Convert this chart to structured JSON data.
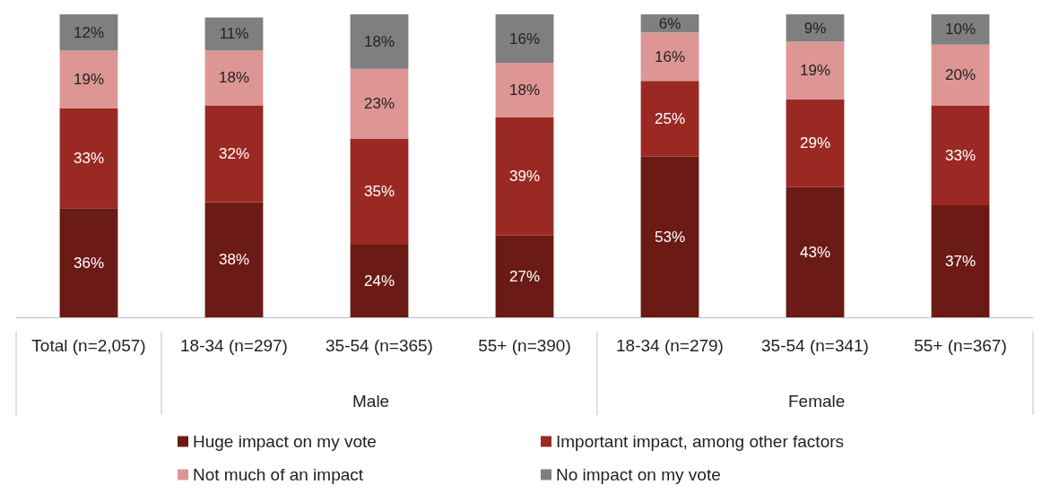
{
  "chart_data": {
    "type": "bar",
    "stacked": true,
    "legend": "bottom",
    "grid": false,
    "categories": [
      "Total (n=2,057)",
      "18-34 (n=297)",
      "35-54 (n=365)",
      "55+ (n=390)",
      "18-34 (n=279)",
      "35-54 (n=341)",
      "55+ (n=367)"
    ],
    "series": [
      {
        "name": "Huge impact on my vote",
        "color": "#6b1a15",
        "values": [
          36,
          38,
          24,
          27,
          53,
          43,
          37
        ],
        "value_labels": [
          "36%",
          "38%",
          "24%",
          "27%",
          "53%",
          "43%",
          "37%"
        ]
      },
      {
        "name": "Important impact, among other factors",
        "color": "#9b2923",
        "values": [
          33,
          32,
          35,
          39,
          25,
          29,
          33
        ],
        "value_labels": [
          "33%",
          "32%",
          "35%",
          "39%",
          "25%",
          "29%",
          "33%"
        ]
      },
      {
        "name": "Not much of an impact",
        "color": "#dd9694",
        "values": [
          19,
          18,
          23,
          18,
          16,
          19,
          20
        ],
        "value_labels": [
          "19%",
          "18%",
          "23%",
          "18%",
          "16%",
          "19%",
          "20%"
        ]
      },
      {
        "name": "No impact on my vote",
        "color": "#7f7f7f",
        "values": [
          12,
          11,
          18,
          16,
          6,
          9,
          10
        ],
        "value_labels": [
          "12%",
          "11%",
          "18%",
          "16%",
          "6%",
          "9%",
          "10%"
        ]
      }
    ],
    "annotations": [
      "Male",
      "Female"
    ]
  }
}
